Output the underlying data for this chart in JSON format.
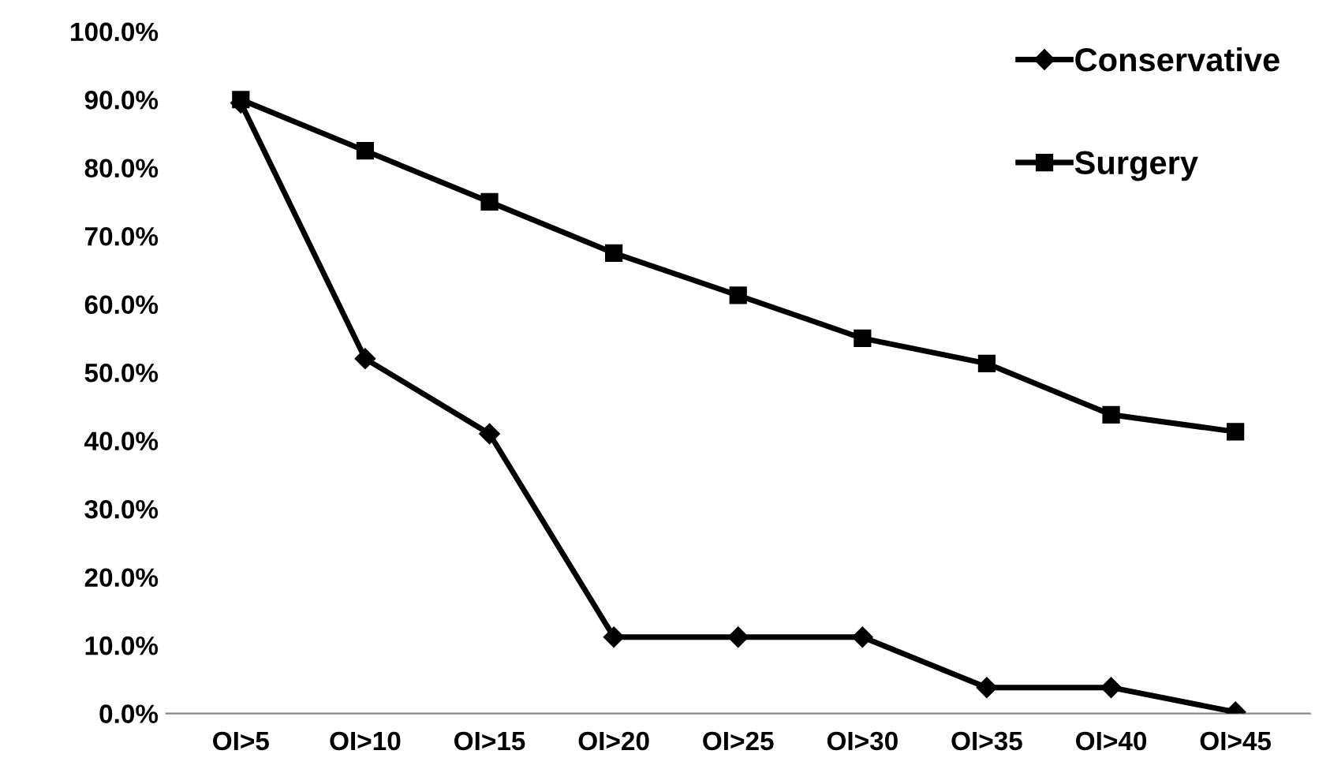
{
  "chart_data": {
    "type": "line",
    "categories": [
      "OI>5",
      "OI>10",
      "OI>15",
      "OI>20",
      "OI>25",
      "OI>30",
      "OI>35",
      "OI>40",
      "OI>45"
    ],
    "series": [
      {
        "name": "Conservative",
        "color": "#000000",
        "marker": "diamond",
        "values": [
          89.5,
          52,
          41,
          11.2,
          11.2,
          11.2,
          3.8,
          3.8,
          0.2
        ]
      },
      {
        "name": "Surgery",
        "color": "#000000",
        "marker": "square",
        "values": [
          90,
          82.5,
          75,
          67.5,
          61.3,
          55,
          51.3,
          43.8,
          41.3
        ]
      }
    ],
    "ylim": [
      0,
      100
    ],
    "yticks": [
      {
        "value": 0,
        "label": "0.0%"
      },
      {
        "value": 10,
        "label": "10.0%"
      },
      {
        "value": 20,
        "label": "20.0%"
      },
      {
        "value": 30,
        "label": "30.0%"
      },
      {
        "value": 40,
        "label": "40.0%"
      },
      {
        "value": 50,
        "label": "50.0%"
      },
      {
        "value": 60,
        "label": "60.0%"
      },
      {
        "value": 70,
        "label": "70.0%"
      },
      {
        "value": 80,
        "label": "80.0%"
      },
      {
        "value": 90,
        "label": "90.0%"
      },
      {
        "value": 100,
        "label": "100.0%"
      }
    ],
    "grid": false,
    "legend": "top right",
    "line_style": "solid"
  }
}
